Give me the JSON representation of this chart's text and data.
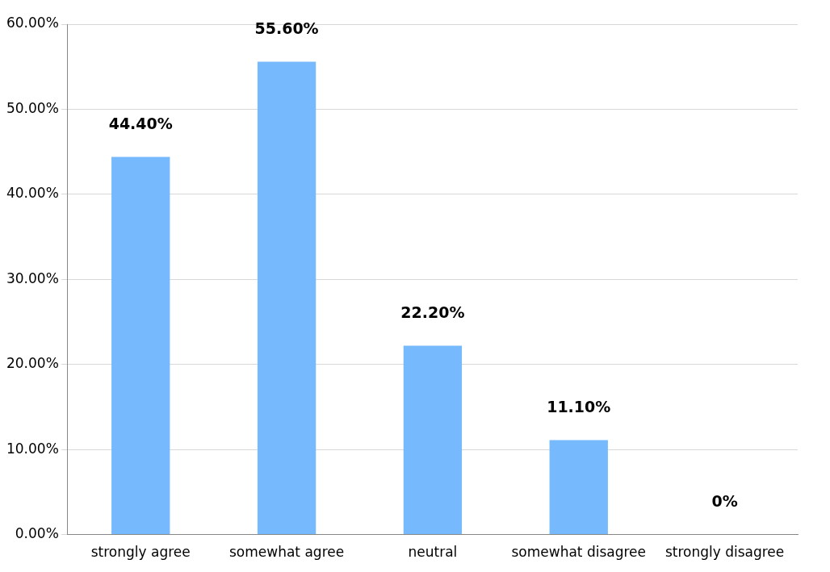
{
  "chart_data": {
    "type": "bar",
    "categories": [
      "strongly agree",
      "somewhat agree",
      "neutral",
      "somewhat disagree",
      "strongly disagree"
    ],
    "values": [
      44.4,
      55.6,
      22.2,
      11.1,
      0
    ],
    "value_labels": [
      "44.40%",
      "55.60%",
      "22.20%",
      "11.10%",
      "0%"
    ],
    "color": "#77b9fd",
    "ylim": [
      0,
      60
    ],
    "yticks": [
      {
        "value": 0,
        "label": "0.00%"
      },
      {
        "value": 10,
        "label": "10.00%"
      },
      {
        "value": 20,
        "label": "20.00%"
      },
      {
        "value": 30,
        "label": "30.00%"
      },
      {
        "value": 40,
        "label": "40.00%"
      },
      {
        "value": 50,
        "label": "50.00%"
      },
      {
        "value": 60,
        "label": "60.00%"
      }
    ],
    "grid": "y",
    "legend": false
  }
}
